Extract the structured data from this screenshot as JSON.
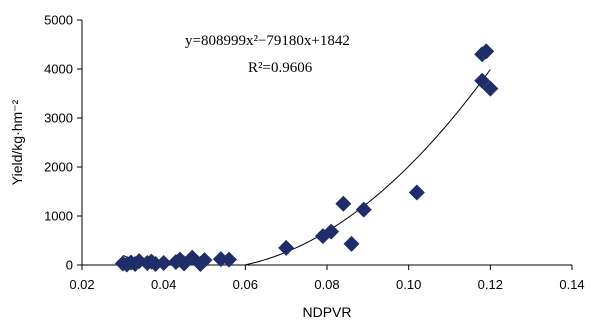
{
  "chart_data": {
    "type": "scatter",
    "xlabel": "NDPVR",
    "ylabel": "Yield/kg·hm⁻²",
    "xlim": [
      0.02,
      0.14
    ],
    "ylim": [
      0,
      5000
    ],
    "xticks": [
      "0.02",
      "0.04",
      "0.06",
      "0.08",
      "0.10",
      "0.12",
      "0.14"
    ],
    "xtick_values": [
      0.02,
      0.04,
      0.06,
      0.08,
      0.1,
      0.12,
      0.14
    ],
    "yticks": [
      "0",
      "1000",
      "2000",
      "3000",
      "4000",
      "5000"
    ],
    "ytick_values": [
      0,
      1000,
      2000,
      3000,
      4000,
      5000
    ],
    "marker": "diamond",
    "marker_color": "#1f2d6b",
    "points": [
      {
        "x": 0.03,
        "y": 30
      },
      {
        "x": 0.031,
        "y": 10
      },
      {
        "x": 0.032,
        "y": 50
      },
      {
        "x": 0.033,
        "y": 20
      },
      {
        "x": 0.034,
        "y": 80
      },
      {
        "x": 0.036,
        "y": 40
      },
      {
        "x": 0.037,
        "y": 70
      },
      {
        "x": 0.038,
        "y": 20
      },
      {
        "x": 0.04,
        "y": 40
      },
      {
        "x": 0.043,
        "y": 60
      },
      {
        "x": 0.044,
        "y": 110
      },
      {
        "x": 0.045,
        "y": 30
      },
      {
        "x": 0.047,
        "y": 150
      },
      {
        "x": 0.049,
        "y": 20
      },
      {
        "x": 0.05,
        "y": 100
      },
      {
        "x": 0.054,
        "y": 120
      },
      {
        "x": 0.056,
        "y": 110
      },
      {
        "x": 0.07,
        "y": 350
      },
      {
        "x": 0.079,
        "y": 590
      },
      {
        "x": 0.081,
        "y": 680
      },
      {
        "x": 0.084,
        "y": 1250
      },
      {
        "x": 0.086,
        "y": 430
      },
      {
        "x": 0.089,
        "y": 1130
      },
      {
        "x": 0.102,
        "y": 1480
      },
      {
        "x": 0.118,
        "y": 4300
      },
      {
        "x": 0.119,
        "y": 4360
      },
      {
        "x": 0.118,
        "y": 3760
      },
      {
        "x": 0.12,
        "y": 3600
      }
    ],
    "trendline": {
      "a": 808999,
      "b": -79180,
      "c": 1842,
      "x_range": [
        0.03,
        0.12
      ],
      "equation_text": "y=808999x²−79180x+1842",
      "r2_text": "R²=0.9606"
    },
    "grid": false,
    "legend": "none"
  }
}
